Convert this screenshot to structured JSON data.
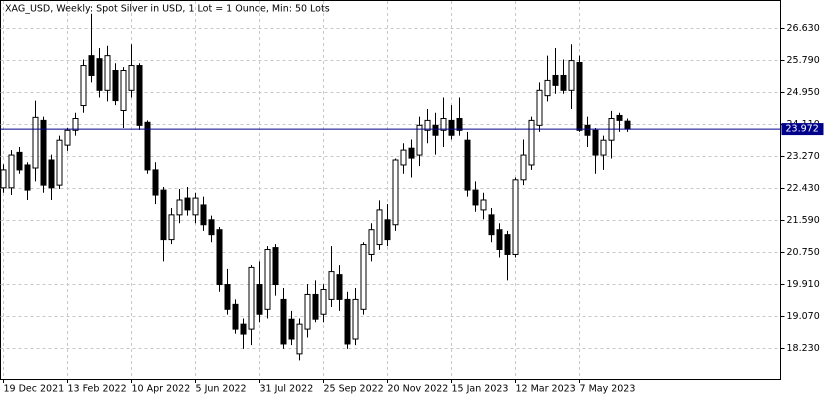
{
  "chart_data": {
    "type": "candlestick",
    "title": "XAG_USD, Weekly:  Spot Silver in USD, 1 Lot = 1 Ounce, Min: 50 Lots",
    "categories": [
      "19 Dec 2021",
      null,
      null,
      null,
      null,
      null,
      null,
      null,
      "13 Feb 2022",
      null,
      null,
      null,
      null,
      null,
      null,
      null,
      "10 Apr 2022",
      null,
      null,
      null,
      null,
      null,
      null,
      null,
      "5 Jun 2022",
      null,
      null,
      null,
      null,
      null,
      null,
      null,
      "31 Jul 2022",
      null,
      null,
      null,
      null,
      null,
      null,
      null,
      "25 Sep 2022",
      null,
      null,
      null,
      null,
      null,
      null,
      null,
      "20 Nov 2022",
      null,
      null,
      null,
      null,
      null,
      null,
      null,
      "15 Jan 2023",
      null,
      null,
      null,
      null,
      null,
      null,
      null,
      "12 Mar 2023",
      null,
      null,
      null,
      null,
      null,
      null,
      null,
      "7 May 2023",
      null,
      null,
      null,
      null,
      null,
      null
    ],
    "open": [
      22.43,
      22.43,
      23.36,
      23.03,
      22.95,
      24.2,
      23.16,
      22.5,
      23.55,
      23.94,
      24.59,
      25.9,
      25.82,
      24.99,
      25.51,
      24.46,
      24.99,
      25.64,
      24.15,
      22.9,
      22.37,
      21.07,
      21.72,
      22.16,
      21.72,
      21.98,
      21.59,
      21.33,
      19.89,
      19.37,
      18.85,
      18.72,
      19.89,
      19.24,
      20.86,
      19.5,
      18.98,
      18.07,
      18.72,
      19.63,
      19.11,
      19.5,
      20.15,
      19.5,
      18.46,
      19.24,
      20.68,
      20.94,
      21.59,
      21.46,
      23.03,
      23.47,
      23.29,
      23.94,
      24.07,
      23.94,
      24.2,
      24.25,
      23.68,
      22.37,
      21.85,
      21.72,
      21.33,
      21.2,
      20.68,
      22.64,
      23.03,
      24.07,
      24.85,
      25.38,
      25.38,
      24.99,
      25.72,
      24.07,
      23.94,
      23.29,
      23.68,
      24.33,
      24.18
    ],
    "high": [
      23.05,
      23.42,
      23.5,
      23.1,
      24.72,
      24.3,
      23.3,
      23.8,
      24.0,
      24.4,
      25.8,
      27.0,
      26.1,
      26.16,
      25.7,
      25.6,
      26.2,
      25.7,
      24.2,
      23.1,
      22.45,
      21.9,
      22.4,
      22.45,
      22.3,
      22.2,
      21.7,
      21.4,
      20.3,
      19.5,
      19.0,
      20.4,
      20.5,
      20.9,
      20.95,
      19.8,
      19.2,
      19.0,
      19.9,
      20.0,
      19.9,
      20.9,
      20.4,
      19.7,
      19.8,
      21.0,
      21.5,
      22.1,
      22.0,
      23.2,
      23.6,
      23.7,
      24.3,
      24.5,
      24.4,
      24.8,
      24.6,
      24.8,
      23.9,
      22.6,
      22.3,
      21.9,
      21.5,
      21.3,
      22.7,
      23.7,
      24.3,
      25.2,
      25.9,
      26.1,
      25.8,
      26.2,
      25.9,
      24.3,
      24.0,
      23.8,
      24.45,
      24.4,
      24.25
    ],
    "low": [
      22.3,
      22.24,
      22.8,
      22.11,
      22.6,
      22.3,
      22.11,
      22.4,
      23.4,
      23.8,
      24.4,
      25.2,
      24.8,
      24.7,
      24.6,
      24.0,
      24.8,
      23.95,
      22.8,
      22.0,
      20.5,
      20.95,
      21.5,
      21.7,
      21.5,
      21.3,
      21.0,
      19.7,
      19.1,
      18.6,
      18.2,
      18.3,
      18.9,
      19.0,
      19.6,
      18.2,
      18.3,
      17.9,
      18.5,
      18.9,
      18.9,
      19.3,
      19.2,
      18.2,
      18.3,
      19.1,
      20.5,
      20.8,
      20.9,
      21.3,
      22.8,
      22.7,
      23.0,
      23.6,
      23.3,
      23.5,
      23.7,
      23.8,
      22.2,
      21.8,
      21.6,
      21.0,
      20.6,
      20.0,
      20.6,
      22.5,
      22.9,
      23.9,
      24.7,
      24.9,
      24.9,
      24.5,
      23.9,
      23.5,
      22.8,
      22.9,
      23.2,
      23.9,
      23.9
    ],
    "close": [
      22.9,
      23.29,
      22.9,
      22.37,
      24.28,
      22.5,
      22.43,
      23.68,
      23.94,
      24.25,
      25.64,
      25.38,
      24.99,
      25.9,
      24.72,
      25.51,
      25.64,
      24.07,
      22.9,
      22.24,
      21.07,
      21.72,
      22.11,
      21.85,
      22.16,
      21.46,
      21.2,
      19.89,
      19.24,
      18.72,
      18.59,
      20.34,
      19.11,
      20.81,
      19.89,
      18.33,
      18.46,
      18.85,
      19.63,
      18.98,
      19.76,
      20.23,
      19.5,
      18.33,
      19.5,
      20.94,
      21.33,
      21.85,
      21.07,
      23.16,
      23.42,
      23.21,
      24.07,
      24.2,
      23.81,
      24.25,
      23.81,
      23.94,
      22.37,
      21.98,
      22.11,
      21.2,
      20.81,
      20.68,
      22.64,
      23.29,
      24.2,
      24.99,
      25.25,
      25.12,
      24.99,
      25.77,
      23.94,
      23.81,
      23.29,
      23.68,
      24.25,
      24.2,
      23.972
    ],
    "last_price": {
      "value": 23.972,
      "label": "23.972"
    },
    "price_line_color": "#00008b",
    "up_color": "#ffffff",
    "down_color": "#000000",
    "ylim": [
      17.41,
      27.335
    ],
    "yticks": [
      {
        "value": 18.23,
        "label": "18.230"
      },
      {
        "value": 19.07,
        "label": "19.070"
      },
      {
        "value": 19.91,
        "label": "19.910"
      },
      {
        "value": 20.75,
        "label": "20.750"
      },
      {
        "value": 21.59,
        "label": "21.590"
      },
      {
        "value": 22.43,
        "label": "22.430"
      },
      {
        "value": 23.27,
        "label": "23.270"
      },
      {
        "value": 24.11,
        "label": "24.110"
      },
      {
        "value": 24.95,
        "label": "24.950"
      },
      {
        "value": 25.79,
        "label": "25.790"
      },
      {
        "value": 26.63,
        "label": "26.630"
      }
    ],
    "grid": true
  }
}
